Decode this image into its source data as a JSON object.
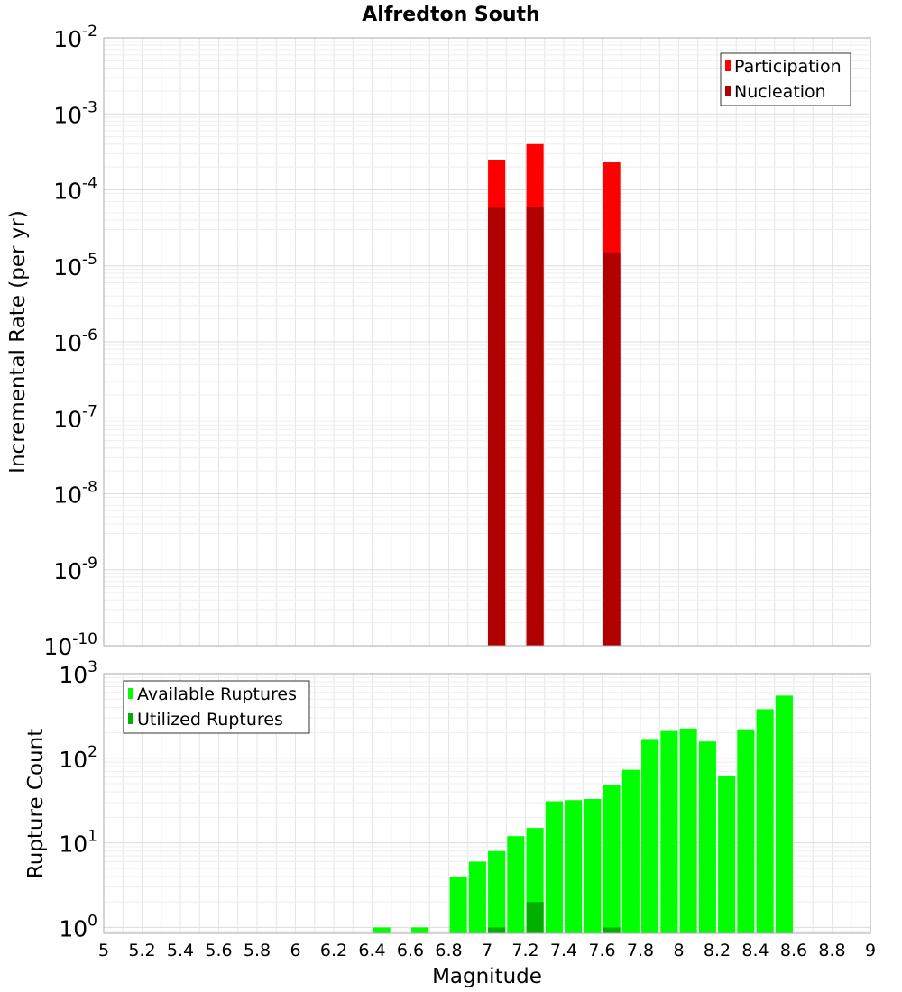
{
  "title": "Alfredton South",
  "xlabel": "Magnitude",
  "colors": {
    "participation": "#ff0000",
    "nucleation": "#b00000",
    "available": "#00ff00",
    "utilized": "#00b000",
    "grid": "#e6e6e6",
    "frame": "#aaaaaa"
  },
  "chart_data": [
    {
      "type": "bar",
      "panel": "top",
      "ylabel": "Incremental Rate (per yr)",
      "yscale": "log",
      "ylim_exp": [
        -10,
        -2
      ],
      "xlim": [
        5,
        9
      ],
      "legend_position": "top-right",
      "bar_width": 0.09,
      "series": [
        {
          "name": "Participation",
          "x": [
            7.05,
            7.25,
            7.65
          ],
          "values": [
            0.00025,
            0.0004,
            0.00023
          ]
        },
        {
          "name": "Nucleation",
          "x": [
            7.05,
            7.25,
            7.65
          ],
          "values": [
            5.8e-05,
            6e-05,
            1.5e-05
          ]
        }
      ]
    },
    {
      "type": "bar",
      "panel": "bottom",
      "ylabel": "Rupture Count",
      "yscale": "log",
      "ylim_exp": [
        -0.07,
        3
      ],
      "xlim": [
        5,
        9
      ],
      "legend_position": "top-left",
      "bar_width": 0.09,
      "series": [
        {
          "name": "Available Ruptures",
          "x": [
            6.45,
            6.65,
            6.85,
            6.95,
            7.05,
            7.15,
            7.25,
            7.35,
            7.45,
            7.55,
            7.65,
            7.75,
            7.85,
            7.95,
            8.05,
            8.15,
            8.25,
            8.35,
            8.45,
            8.55
          ],
          "values": [
            1,
            1,
            4,
            6,
            8,
            12,
            15,
            31,
            32,
            33,
            48,
            73,
            165,
            210,
            225,
            158,
            61,
            220,
            380,
            550
          ]
        },
        {
          "name": "Utilized Ruptures",
          "x": [
            7.05,
            7.25,
            7.65
          ],
          "values": [
            1,
            2,
            1
          ]
        }
      ],
      "x_ticks": [
        "5",
        "5.2",
        "5.4",
        "5.6",
        "5.8",
        "6",
        "6.2",
        "6.4",
        "6.6",
        "6.8",
        "7",
        "7.2",
        "7.4",
        "7.6",
        "7.8",
        "8",
        "8.2",
        "8.4",
        "8.6",
        "8.8",
        "9"
      ]
    }
  ],
  "top_y_ticks": [
    {
      "base": "10",
      "exp": "-2"
    },
    {
      "base": "10",
      "exp": "-3"
    },
    {
      "base": "10",
      "exp": "-4"
    },
    {
      "base": "10",
      "exp": "-5"
    },
    {
      "base": "10",
      "exp": "-6"
    },
    {
      "base": "10",
      "exp": "-7"
    },
    {
      "base": "10",
      "exp": "-8"
    },
    {
      "base": "10",
      "exp": "-9"
    },
    {
      "base": "10",
      "exp": "-10"
    }
  ],
  "bottom_y_ticks": [
    {
      "base": "10",
      "exp": "3"
    },
    {
      "base": "10",
      "exp": "2"
    },
    {
      "base": "10",
      "exp": "1"
    },
    {
      "base": "10",
      "exp": "0"
    }
  ]
}
